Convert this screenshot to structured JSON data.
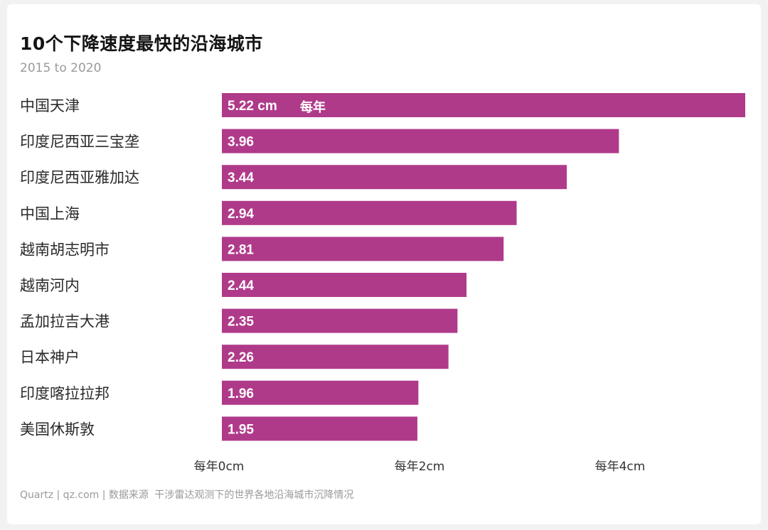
{
  "header": {
    "title": "10个下降速度最快的沿海城市",
    "subtitle": "2015 to 2020"
  },
  "footer": {
    "brand": "Quartz | qz.com | 数据来源",
    "note": "干涉雷达观测下的世界各地沿海城市沉降情况"
  },
  "colors": {
    "bar": "#b03a8a",
    "bar_label": "#ffffff",
    "text": "#2a2a2a",
    "tick": "#333333"
  },
  "chart_data": {
    "type": "bar",
    "orientation": "horizontal",
    "title": "10个下降速度最快的沿海城市",
    "subtitle": "2015 to 2020",
    "categories": [
      "中国天津",
      "印度尼西亚三宝垄",
      "印度尼西亚雅加达",
      "中国上海",
      "越南胡志明市",
      "越南河内",
      "孟加拉吉大港",
      "日本神户",
      "印度喀拉拉邦",
      "美国休斯敦"
    ],
    "values": [
      5.22,
      3.96,
      3.44,
      2.94,
      2.81,
      2.44,
      2.35,
      2.26,
      1.96,
      1.95
    ],
    "value_labels": [
      "5.22 cm",
      "3.96",
      "3.44",
      "2.94",
      "2.81",
      "2.44",
      "2.35",
      "2.26",
      "1.96",
      "1.95"
    ],
    "first_bar_suffix": "每年",
    "xlim": [
      0,
      5.22
    ],
    "xticks": [
      0,
      2,
      4
    ],
    "xtick_labels": [
      "每年0cm",
      "每年2cm",
      "每年4cm"
    ],
    "unit": "cm",
    "grid": false
  }
}
